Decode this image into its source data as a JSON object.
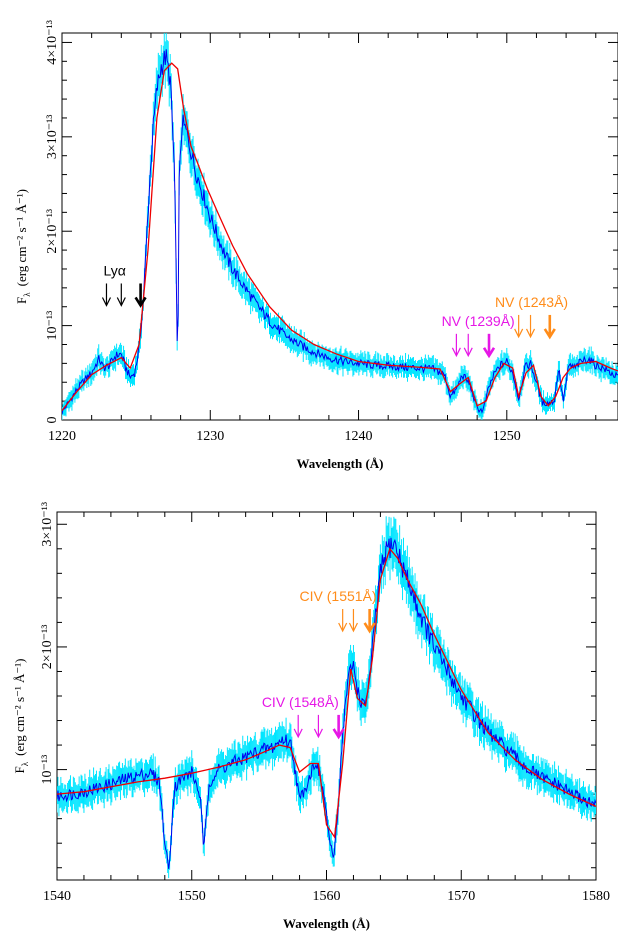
{
  "chart_data": [
    {
      "type": "line",
      "xlabel": "Wavelength (Å)",
      "ylabel_main": "F",
      "ylabel_sub": "λ",
      "ylabel_units": "(erg cm⁻² s⁻¹ Å⁻¹)",
      "xlim": [
        1220,
        1257.5
      ],
      "ylim": [
        0,
        4.1
      ],
      "y_unit_note": "values in units of 1e-13",
      "x_ticks": [
        1220,
        1230,
        1240,
        1250
      ],
      "x_tick_labels": [
        "1220",
        "1230",
        "1240",
        "1250"
      ],
      "y_ticks": [
        0,
        1,
        2,
        3,
        4
      ],
      "y_tick_labels": [
        "0",
        "10⁻¹³",
        "2×10⁻¹³",
        "3×10⁻¹³",
        "4×10⁻¹³"
      ],
      "series": [
        {
          "role": "data",
          "color": "#0000ee",
          "error_color": "#00e5ff",
          "x": [
            1220.0,
            1220.5,
            1221.0,
            1221.5,
            1222.0,
            1222.5,
            1222.8,
            1223.2,
            1223.6,
            1224.0,
            1224.3,
            1224.6,
            1224.9,
            1225.2,
            1225.5,
            1225.8,
            1226.1,
            1226.4,
            1226.7,
            1227.0,
            1227.3,
            1227.6,
            1227.8,
            1227.9,
            1228.1,
            1228.4,
            1228.7,
            1229.0,
            1229.5,
            1230.0,
            1230.5,
            1231.0,
            1231.5,
            1232.0,
            1233.0,
            1234.0,
            1235.0,
            1236.0,
            1237.0,
            1238.0,
            1239.0,
            1240.0,
            1241.0,
            1242.0,
            1243.0,
            1244.0,
            1245.0,
            1245.8,
            1246.2,
            1246.6,
            1247.0,
            1247.5,
            1248.0,
            1248.4,
            1248.8,
            1249.2,
            1249.6,
            1250.0,
            1250.4,
            1250.8,
            1251.2,
            1251.6,
            1252.0,
            1252.4,
            1252.8,
            1253.2,
            1253.5,
            1253.8,
            1254.2,
            1254.6,
            1255.0,
            1255.5,
            1256.0,
            1256.5,
            1257.0,
            1257.5
          ],
          "y": [
            0.08,
            0.2,
            0.32,
            0.42,
            0.5,
            0.65,
            0.55,
            0.58,
            0.68,
            0.7,
            0.55,
            0.45,
            0.5,
            0.75,
            1.3,
            2.2,
            3.0,
            3.5,
            3.75,
            3.85,
            3.6,
            2.6,
            0.45,
            2.5,
            3.15,
            3.05,
            2.85,
            2.65,
            2.4,
            2.15,
            1.95,
            1.75,
            1.6,
            1.48,
            1.25,
            1.05,
            0.9,
            0.8,
            0.72,
            0.66,
            0.62,
            0.6,
            0.58,
            0.57,
            0.56,
            0.55,
            0.54,
            0.48,
            0.25,
            0.32,
            0.48,
            0.38,
            0.12,
            0.1,
            0.35,
            0.5,
            0.58,
            0.62,
            0.5,
            0.22,
            0.55,
            0.6,
            0.4,
            0.18,
            0.18,
            0.2,
            0.55,
            0.2,
            0.58,
            0.55,
            0.62,
            0.65,
            0.58,
            0.55,
            0.5,
            0.45
          ]
        },
        {
          "role": "model",
          "color": "#ee0000",
          "x": [
            1220.0,
            1221.0,
            1222.0,
            1223.0,
            1224.0,
            1224.6,
            1225.2,
            1225.8,
            1226.4,
            1226.9,
            1227.4,
            1227.8,
            1228.2,
            1228.7,
            1229.2,
            1229.8,
            1230.5,
            1231.5,
            1232.5,
            1234.0,
            1235.5,
            1237.0,
            1238.5,
            1240.0,
            1242.0,
            1244.0,
            1245.5,
            1246.2,
            1246.8,
            1247.4,
            1248.0,
            1248.6,
            1249.2,
            1249.8,
            1250.4,
            1250.8,
            1251.3,
            1251.8,
            1252.3,
            1252.8,
            1253.3,
            1253.8,
            1254.3,
            1255.0,
            1256.0,
            1257.0,
            1257.5
          ],
          "y": [
            0.1,
            0.3,
            0.48,
            0.58,
            0.66,
            0.55,
            0.8,
            1.8,
            3.2,
            3.7,
            3.78,
            3.72,
            3.3,
            2.9,
            2.7,
            2.45,
            2.2,
            1.85,
            1.55,
            1.2,
            0.95,
            0.8,
            0.7,
            0.62,
            0.58,
            0.56,
            0.54,
            0.3,
            0.38,
            0.45,
            0.15,
            0.2,
            0.45,
            0.6,
            0.55,
            0.25,
            0.5,
            0.58,
            0.25,
            0.15,
            0.25,
            0.45,
            0.55,
            0.6,
            0.62,
            0.55,
            0.52
          ]
        }
      ],
      "annotations": [
        {
          "text": "Lyα",
          "color": "#000000",
          "arrows": [
            1223.0,
            1224.0,
            1225.3
          ],
          "bold_arrow": 1225.3,
          "label_x": 1222.8
        },
        {
          "text": "NV (1239Å)",
          "color": "#e617e6",
          "arrows": [
            1246.6,
            1247.4,
            1248.8
          ],
          "bold_arrow": 1248.8,
          "label_x": 1245.6
        },
        {
          "text": "NV (1243Å)",
          "color": "#ff8c1a",
          "arrows": [
            1250.8,
            1251.6,
            1252.9
          ],
          "bold_arrow": 1252.9,
          "label_x": 1249.2
        }
      ]
    },
    {
      "type": "line",
      "xlabel": "Wavelength (Å)",
      "ylabel_main": "F",
      "ylabel_sub": "λ",
      "ylabel_units": "(erg cm⁻² s⁻¹ Å⁻¹)",
      "xlim": [
        1540,
        1580
      ],
      "ylim": [
        0.1,
        3.1
      ],
      "y_unit_note": "values in units of 1e-13",
      "x_ticks": [
        1540,
        1550,
        1560,
        1570,
        1580
      ],
      "x_tick_labels": [
        "1540",
        "1550",
        "1560",
        "1570",
        "1580"
      ],
      "y_ticks": [
        1,
        2,
        3
      ],
      "y_tick_labels": [
        "10⁻¹³",
        "2×10⁻¹³",
        "3×10⁻¹³"
      ],
      "series": [
        {
          "role": "data",
          "color": "#0000ee",
          "error_color": "#00e5ff",
          "x": [
            1540.0,
            1541.0,
            1542.0,
            1543.0,
            1544.0,
            1545.0,
            1546.0,
            1547.0,
            1547.6,
            1548.0,
            1548.3,
            1548.7,
            1549.2,
            1550.0,
            1550.6,
            1550.9,
            1551.3,
            1552.0,
            1553.0,
            1554.0,
            1555.0,
            1556.0,
            1556.8,
            1557.4,
            1558.0,
            1558.6,
            1559.2,
            1559.8,
            1560.2,
            1560.5,
            1560.8,
            1561.2,
            1561.6,
            1562.0,
            1562.4,
            1562.8,
            1563.2,
            1563.6,
            1564.0,
            1564.5,
            1565.0,
            1565.5,
            1566.0,
            1566.5,
            1567.0,
            1568.0,
            1569.0,
            1570.0,
            1571.0,
            1572.0,
            1573.0,
            1574.0,
            1575.0,
            1576.0,
            1577.0,
            1578.0,
            1579.0,
            1580.0
          ],
          "y": [
            0.78,
            0.8,
            0.82,
            0.85,
            0.88,
            0.92,
            0.95,
            0.97,
            0.9,
            0.4,
            0.18,
            0.85,
            0.92,
            0.98,
            0.8,
            0.35,
            0.9,
            1.0,
            1.05,
            1.1,
            1.15,
            1.18,
            1.25,
            1.2,
            0.75,
            0.9,
            1.08,
            0.8,
            0.45,
            0.25,
            0.6,
            1.3,
            1.75,
            1.85,
            1.6,
            1.5,
            1.75,
            2.2,
            2.6,
            2.8,
            2.85,
            2.7,
            2.55,
            2.4,
            2.25,
            2.0,
            1.8,
            1.6,
            1.45,
            1.3,
            1.2,
            1.1,
            1.0,
            0.93,
            0.88,
            0.82,
            0.76,
            0.7
          ]
        },
        {
          "role": "model",
          "color": "#ee0000",
          "x": [
            1540.0,
            1542.0,
            1544.0,
            1546.0,
            1548.0,
            1550.0,
            1552.0,
            1554.0,
            1555.5,
            1556.5,
            1557.3,
            1558.0,
            1558.8,
            1559.4,
            1560.0,
            1560.6,
            1561.2,
            1561.8,
            1562.3,
            1562.9,
            1563.4,
            1564.0,
            1564.7,
            1565.3,
            1566.0,
            1567.0,
            1568.0,
            1570.0,
            1572.0,
            1574.0,
            1576.0,
            1578.0,
            1580.0
          ],
          "y": [
            0.8,
            0.82,
            0.86,
            0.9,
            0.93,
            0.97,
            1.02,
            1.08,
            1.15,
            1.2,
            1.18,
            0.98,
            1.05,
            1.05,
            0.55,
            0.45,
            1.05,
            1.82,
            1.58,
            1.52,
            1.9,
            2.55,
            2.8,
            2.72,
            2.55,
            2.35,
            2.1,
            1.65,
            1.3,
            1.08,
            0.92,
            0.8,
            0.7
          ]
        }
      ],
      "annotations": [
        {
          "text": "CIV (1548Å)",
          "color": "#e617e6",
          "arrows": [
            1557.9,
            1559.4,
            1560.9
          ],
          "bold_arrow": 1560.9,
          "label_x": 1555.2
        },
        {
          "text": "CIV (1551Å)",
          "color": "#ff8c1a",
          "arrows": [
            1561.2,
            1562.0,
            1563.2
          ],
          "bold_arrow": 1563.2,
          "label_x": 1558.0
        }
      ]
    }
  ]
}
